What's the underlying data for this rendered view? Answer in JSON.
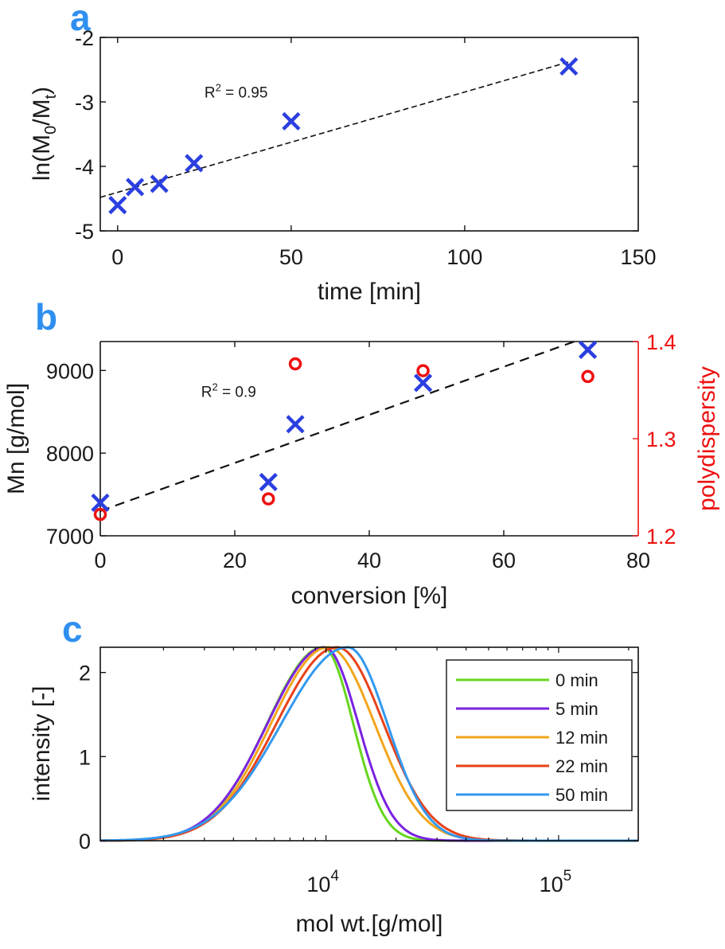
{
  "chart_data": [
    {
      "panel": "a",
      "type": "scatter",
      "title": "",
      "xlabel": "time [min]",
      "ylabel": "ln(M0/Mt)",
      "xlim": [
        -5,
        150
      ],
      "ylim": [
        -5,
        -2
      ],
      "xticks": [
        0,
        50,
        100,
        150
      ],
      "yticks": [
        -5,
        -4,
        -3,
        -2
      ],
      "series": [
        {
          "name": "data",
          "marker": "x",
          "color": "#2b3fe0",
          "x": [
            0,
            5,
            12,
            22,
            50,
            130
          ],
          "y": [
            -4.6,
            -4.32,
            -4.27,
            -3.95,
            -3.3,
            -2.45
          ]
        },
        {
          "name": "linear fit",
          "style": "dashed",
          "color": "#111111",
          "x": [
            -5,
            130
          ],
          "y": [
            -4.48,
            -2.38
          ]
        }
      ],
      "annotations": [
        {
          "text": "R",
          "sup": "2",
          "rest": " = 0.95",
          "x": 25,
          "y": -2.93
        }
      ],
      "grid": false
    },
    {
      "panel": "b",
      "type": "scatter",
      "title": "",
      "xlabel": "conversion [%]",
      "ylabel": "Mn [g/mol]",
      "ylabel_right": "polydispersity",
      "xlim": [
        0,
        80
      ],
      "ylim": [
        7000,
        9350
      ],
      "ylim_right": [
        1.2,
        1.4
      ],
      "xticks": [
        0,
        20,
        40,
        60,
        80
      ],
      "yticks": [
        7000,
        8000,
        9000
      ],
      "yticks_right": [
        1.2,
        1.3,
        1.4
      ],
      "right_axis_color": "#ee1111",
      "series": [
        {
          "name": "Mn",
          "marker": "x",
          "color": "#2b3fe0",
          "axis": "left",
          "x": [
            0,
            25,
            29,
            48,
            72.5
          ],
          "y": [
            7400,
            7650,
            8350,
            8850,
            9250
          ]
        },
        {
          "name": "polydispersity",
          "marker": "o",
          "color": "#ee1111",
          "axis": "right",
          "x": [
            0,
            25,
            29,
            48,
            72.5
          ],
          "y": [
            1.222,
            1.238,
            1.377,
            1.37,
            1.364
          ]
        },
        {
          "name": "linear fit",
          "style": "dashed",
          "color": "#111111",
          "axis": "left",
          "x": [
            0,
            70.5
          ],
          "y": [
            7300,
            9350
          ]
        }
      ],
      "annotations": [
        {
          "text": "R",
          "sup": "2",
          "rest": " = 0.9",
          "x": 15,
          "y": 8680
        }
      ],
      "grid": false
    },
    {
      "panel": "c",
      "type": "line",
      "title": "",
      "xlabel": "mol wt.[g/mol]",
      "ylabel": "intensity [-]",
      "xscale": "log",
      "xlim": [
        1070,
        220000
      ],
      "ylim": [
        0,
        2.3
      ],
      "xticks": [
        10000,
        100000
      ],
      "xtick_labels": [
        {
          "base": "10",
          "exp": "4"
        },
        {
          "base": "10",
          "exp": "5"
        }
      ],
      "yticks": [
        0,
        1,
        2
      ],
      "legend": {
        "placement": "top-right"
      },
      "series": [
        {
          "name": "0 min",
          "color": "#66d61f",
          "peak_mw": 9700,
          "peak": 2.3,
          "sigma_left": 0.24,
          "sigma_right": 0.13
        },
        {
          "name": "5 min",
          "color": "#7b22e0",
          "peak_mw": 9850,
          "peak": 2.3,
          "sigma_left": 0.245,
          "sigma_right": 0.145
        },
        {
          "name": "12 min",
          "color": "#f2a51c",
          "peak_mw": 10200,
          "peak": 2.3,
          "sigma_left": 0.245,
          "sigma_right": 0.2
        },
        {
          "name": "22 min",
          "color": "#e8421a",
          "peak_mw": 11150,
          "peak": 2.3,
          "sigma_left": 0.26,
          "sigma_right": 0.2
        },
        {
          "name": "50 min",
          "color": "#3399ee",
          "peak_mw": 12400,
          "peak": 2.3,
          "sigma_left": 0.285,
          "sigma_right": 0.17
        }
      ],
      "grid": false
    }
  ],
  "panel_letters": [
    "a",
    "b",
    "c"
  ]
}
